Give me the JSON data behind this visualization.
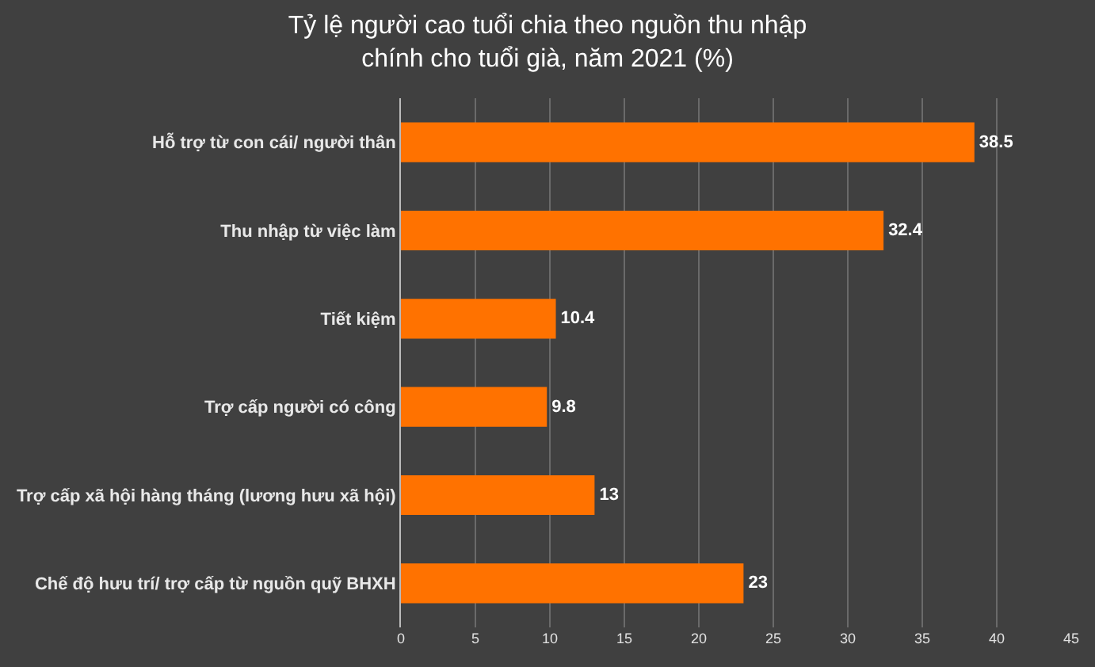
{
  "chart_data": {
    "type": "bar",
    "orientation": "horizontal",
    "title": "Tỷ lệ người cao tuổi chia theo nguồn thu nhập chính cho tuổi già, năm 2021 (%)",
    "categories": [
      "Hỗ trợ từ con cái/ người thân",
      "Thu nhập từ việc làm",
      "Tiết kiệm",
      "Trợ cấp người có công",
      "Trợ cấp xã hội hàng tháng (lương hưu xã hội)",
      "Chế độ hưu trí/ trợ cấp từ nguồn quỹ BHXH"
    ],
    "values": [
      38.5,
      32.4,
      10.4,
      9.8,
      13,
      23
    ],
    "color": "#ff7200",
    "data_labels": true,
    "xlim": [
      0,
      45
    ],
    "xticks": [
      0,
      5,
      10,
      15,
      20,
      25,
      30,
      35,
      40,
      45
    ],
    "grid": "x"
  }
}
